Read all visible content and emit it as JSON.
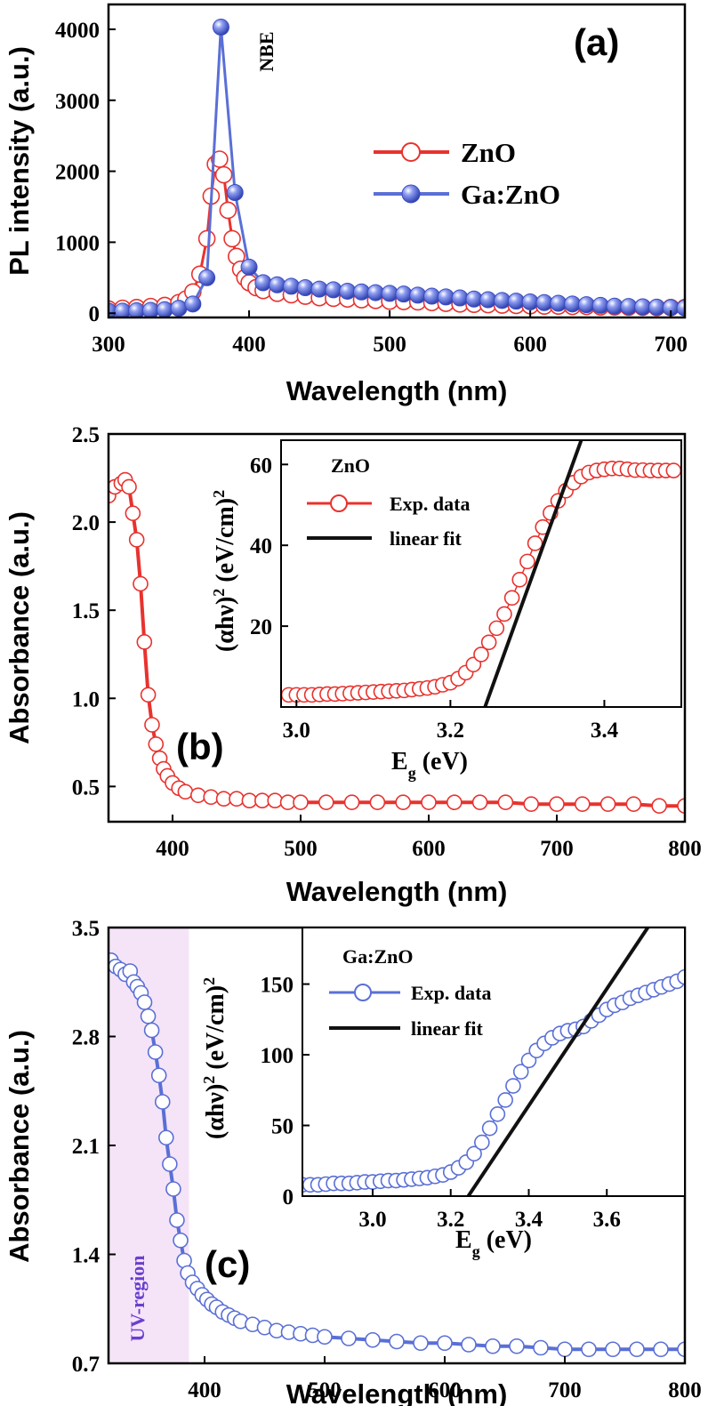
{
  "colors": {
    "zno": "#e8322e",
    "gazno": "#5a6fd6",
    "fit": "#111111",
    "uv_shade": "#f5e4f7",
    "uv_text": "#6a3fd0"
  },
  "chart_data": [
    {
      "panel": "(a)",
      "type": "line",
      "title": "",
      "xlabel": "Wavelength (nm)",
      "ylabel": "PL intensity (a.u.)",
      "xlim": [
        300,
        710
      ],
      "ylim": [
        -60,
        4350
      ],
      "xticks": [
        "300",
        "400",
        "500",
        "600",
        "700"
      ],
      "yticks": [
        "0",
        "1000",
        "2000",
        "3000",
        "4000"
      ],
      "legend": [
        "ZnO",
        "Ga:ZnO"
      ],
      "annotation": "NBE",
      "series": [
        {
          "name": "ZnO",
          "marker": "open-circle",
          "x": [
            300,
            310,
            320,
            330,
            340,
            350,
            355,
            360,
            365,
            370,
            373,
            376,
            379,
            382,
            385,
            388,
            391,
            394,
            397,
            400,
            405,
            410,
            420,
            430,
            440,
            450,
            460,
            470,
            480,
            490,
            500,
            510,
            520,
            530,
            540,
            550,
            560,
            570,
            580,
            590,
            600,
            610,
            620,
            630,
            640,
            650,
            660,
            670,
            680,
            690,
            700,
            710
          ],
          "values": [
            60,
            70,
            80,
            95,
            110,
            150,
            200,
            300,
            550,
            1050,
            1650,
            2100,
            2170,
            1950,
            1450,
            1050,
            800,
            620,
            500,
            430,
            360,
            320,
            280,
            260,
            240,
            220,
            210,
            200,
            190,
            180,
            170,
            165,
            160,
            150,
            140,
            130,
            125,
            120,
            115,
            110,
            105,
            100,
            100,
            95,
            95,
            90,
            90,
            85,
            85,
            80,
            80,
            80
          ]
        },
        {
          "name": "Ga:ZnO",
          "marker": "filled-sphere",
          "x": [
            300,
            310,
            320,
            330,
            340,
            350,
            360,
            370,
            380,
            390,
            400,
            410,
            420,
            430,
            440,
            450,
            460,
            470,
            480,
            490,
            500,
            510,
            520,
            530,
            540,
            550,
            560,
            570,
            580,
            590,
            600,
            610,
            620,
            630,
            640,
            650,
            660,
            670,
            680,
            690,
            700,
            710
          ],
          "values": [
            30,
            30,
            35,
            40,
            50,
            70,
            130,
            500,
            4030,
            1700,
            650,
            430,
            400,
            380,
            360,
            340,
            330,
            310,
            300,
            290,
            280,
            270,
            255,
            240,
            230,
            215,
            200,
            190,
            180,
            170,
            160,
            150,
            140,
            130,
            120,
            110,
            100,
            95,
            90,
            85,
            80,
            75
          ]
        }
      ]
    },
    {
      "panel": "(b)",
      "type": "line",
      "title": "",
      "xlabel": "Wavelength (nm)",
      "ylabel": "Absorbance (a.u.)",
      "xlim": [
        350,
        800
      ],
      "ylim": [
        0.3,
        2.5
      ],
      "xticks": [
        "400",
        "500",
        "600",
        "700",
        "800"
      ],
      "yticks": [
        "0.5",
        "1.0",
        "1.5",
        "2.0",
        "2.5"
      ],
      "series": [
        {
          "name": "ZnO",
          "marker": "open-circle",
          "x": [
            350,
            355,
            360,
            363,
            366,
            369,
            372,
            375,
            378,
            381,
            384,
            387,
            390,
            393,
            396,
            400,
            405,
            410,
            420,
            430,
            440,
            450,
            460,
            470,
            480,
            490,
            500,
            520,
            540,
            560,
            580,
            600,
            620,
            640,
            660,
            680,
            700,
            720,
            740,
            760,
            780,
            800
          ],
          "values": [
            2.15,
            2.2,
            2.22,
            2.24,
            2.2,
            2.05,
            1.9,
            1.65,
            1.32,
            1.02,
            0.85,
            0.74,
            0.66,
            0.6,
            0.56,
            0.52,
            0.49,
            0.47,
            0.45,
            0.44,
            0.43,
            0.43,
            0.42,
            0.42,
            0.42,
            0.41,
            0.41,
            0.41,
            0.41,
            0.41,
            0.41,
            0.41,
            0.41,
            0.41,
            0.41,
            0.4,
            0.4,
            0.4,
            0.4,
            0.4,
            0.39,
            0.39
          ]
        }
      ],
      "inset": {
        "xlabel": "E_g (eV)",
        "ylabel": "(αhν)^2 (eV/cm)^2",
        "xlim": [
          2.98,
          3.5
        ],
        "ylim": [
          0,
          66
        ],
        "xticks": [
          "3.0",
          "3.2",
          "3.4"
        ],
        "yticks": [
          "20",
          "40",
          "60"
        ],
        "legend_title": "ZnO",
        "legend": [
          "Exp. data",
          "linear fit"
        ],
        "series": [
          {
            "name": "Exp. data",
            "x": [
              2.99,
              3.0,
              3.01,
              3.02,
              3.03,
              3.04,
              3.05,
              3.06,
              3.07,
              3.08,
              3.09,
              3.1,
              3.11,
              3.12,
              3.13,
              3.14,
              3.15,
              3.16,
              3.17,
              3.18,
              3.19,
              3.2,
              3.21,
              3.22,
              3.23,
              3.24,
              3.25,
              3.26,
              3.27,
              3.28,
              3.29,
              3.3,
              3.31,
              3.32,
              3.33,
              3.34,
              3.35,
              3.36,
              3.37,
              3.38,
              3.39,
              3.4,
              3.41,
              3.42,
              3.43,
              3.44,
              3.45,
              3.46,
              3.47,
              3.48,
              3.49
            ],
            "values": [
              3.0,
              3.0,
              3.0,
              3.0,
              3.1,
              3.2,
              3.2,
              3.3,
              3.4,
              3.5,
              3.6,
              3.7,
              3.8,
              3.9,
              4.0,
              4.1,
              4.3,
              4.5,
              4.7,
              5.0,
              5.5,
              6.0,
              7.0,
              8.5,
              10.5,
              13.0,
              16.0,
              19.5,
              23.0,
              27.0,
              31.5,
              36.0,
              40.5,
              44.5,
              48.0,
              51.0,
              53.5,
              55.5,
              57.0,
              58.0,
              58.5,
              58.8,
              59.0,
              59.0,
              58.8,
              58.6,
              58.6,
              58.5,
              58.5,
              58.5,
              58.5
            ]
          },
          {
            "name": "linear fit",
            "x": [
              3.245,
              3.37
            ],
            "values": [
              0,
              66
            ]
          }
        ]
      }
    },
    {
      "panel": "(c)",
      "type": "line",
      "title": "",
      "xlabel": "Wavelength (nm)",
      "ylabel": "Absorbance (a.u.)",
      "xlim": [
        320,
        800
      ],
      "ylim": [
        0.7,
        3.5
      ],
      "xticks": [
        "400",
        "500",
        "600",
        "700",
        "800"
      ],
      "yticks": [
        "0.7",
        "1.4",
        "2.1",
        "2.8",
        "3.5"
      ],
      "shaded_region": {
        "x": [
          320,
          387
        ],
        "label": "UV-region"
      },
      "series": [
        {
          "name": "Ga:ZnO",
          "marker": "open-circle",
          "x": [
            322,
            326,
            330,
            334,
            338,
            341,
            344,
            347,
            350,
            353,
            356,
            359,
            362,
            365,
            368,
            371,
            374,
            377,
            380,
            383,
            386,
            390,
            394,
            398,
            402,
            406,
            410,
            415,
            420,
            425,
            430,
            440,
            450,
            460,
            470,
            480,
            490,
            500,
            520,
            540,
            560,
            580,
            600,
            620,
            640,
            660,
            680,
            700,
            720,
            740,
            760,
            780,
            800
          ],
          "values": [
            3.29,
            3.25,
            3.23,
            3.2,
            3.22,
            3.15,
            3.12,
            3.08,
            3.02,
            2.93,
            2.84,
            2.7,
            2.55,
            2.38,
            2.15,
            1.98,
            1.82,
            1.62,
            1.49,
            1.36,
            1.28,
            1.22,
            1.18,
            1.14,
            1.11,
            1.08,
            1.06,
            1.03,
            1.01,
            0.99,
            0.97,
            0.95,
            0.93,
            0.91,
            0.9,
            0.89,
            0.88,
            0.87,
            0.86,
            0.85,
            0.84,
            0.83,
            0.83,
            0.82,
            0.81,
            0.81,
            0.8,
            0.79,
            0.79,
            0.79,
            0.79,
            0.79,
            0.79
          ]
        }
      ],
      "inset": {
        "xlabel": "E_g (eV)",
        "ylabel": "(αhν)^2 (eV/cm)^2",
        "xlim": [
          2.82,
          3.8
        ],
        "ylim": [
          0,
          190
        ],
        "xticks": [
          "3.0",
          "3.2",
          "3.4",
          "3.6"
        ],
        "yticks": [
          "0",
          "50",
          "100",
          "150"
        ],
        "legend_title": "Ga:ZnO",
        "legend": [
          "Exp. data",
          "linear fit"
        ],
        "series": [
          {
            "name": "Exp. data",
            "x": [
              2.82,
              2.84,
              2.86,
              2.88,
              2.9,
              2.92,
              2.94,
              2.96,
              2.98,
              3.0,
              3.02,
              3.04,
              3.06,
              3.08,
              3.1,
              3.12,
              3.14,
              3.16,
              3.18,
              3.2,
              3.22,
              3.24,
              3.26,
              3.28,
              3.3,
              3.32,
              3.34,
              3.36,
              3.38,
              3.4,
              3.42,
              3.44,
              3.46,
              3.48,
              3.5,
              3.52,
              3.54,
              3.56,
              3.58,
              3.6,
              3.62,
              3.64,
              3.66,
              3.68,
              3.7,
              3.72,
              3.74,
              3.76,
              3.78,
              3.8
            ],
            "values": [
              8,
              8,
              8,
              8.5,
              9,
              9,
              9,
              9.5,
              10,
              10,
              10.5,
              11,
              11,
              11.5,
              12,
              12.5,
              13,
              14,
              15,
              17,
              20,
              24,
              30,
              38,
              48,
              58,
              68,
              78,
              88,
              96,
              103,
              108,
              112,
              115,
              117,
              118,
              120,
              124,
              128,
              132,
              135,
              137,
              140,
              142,
              144,
              146,
              148,
              150,
              152,
              155
            ]
          },
          {
            "name": "linear fit",
            "x": [
              3.245,
              3.705
            ],
            "values": [
              0,
              190
            ]
          }
        ]
      }
    }
  ]
}
